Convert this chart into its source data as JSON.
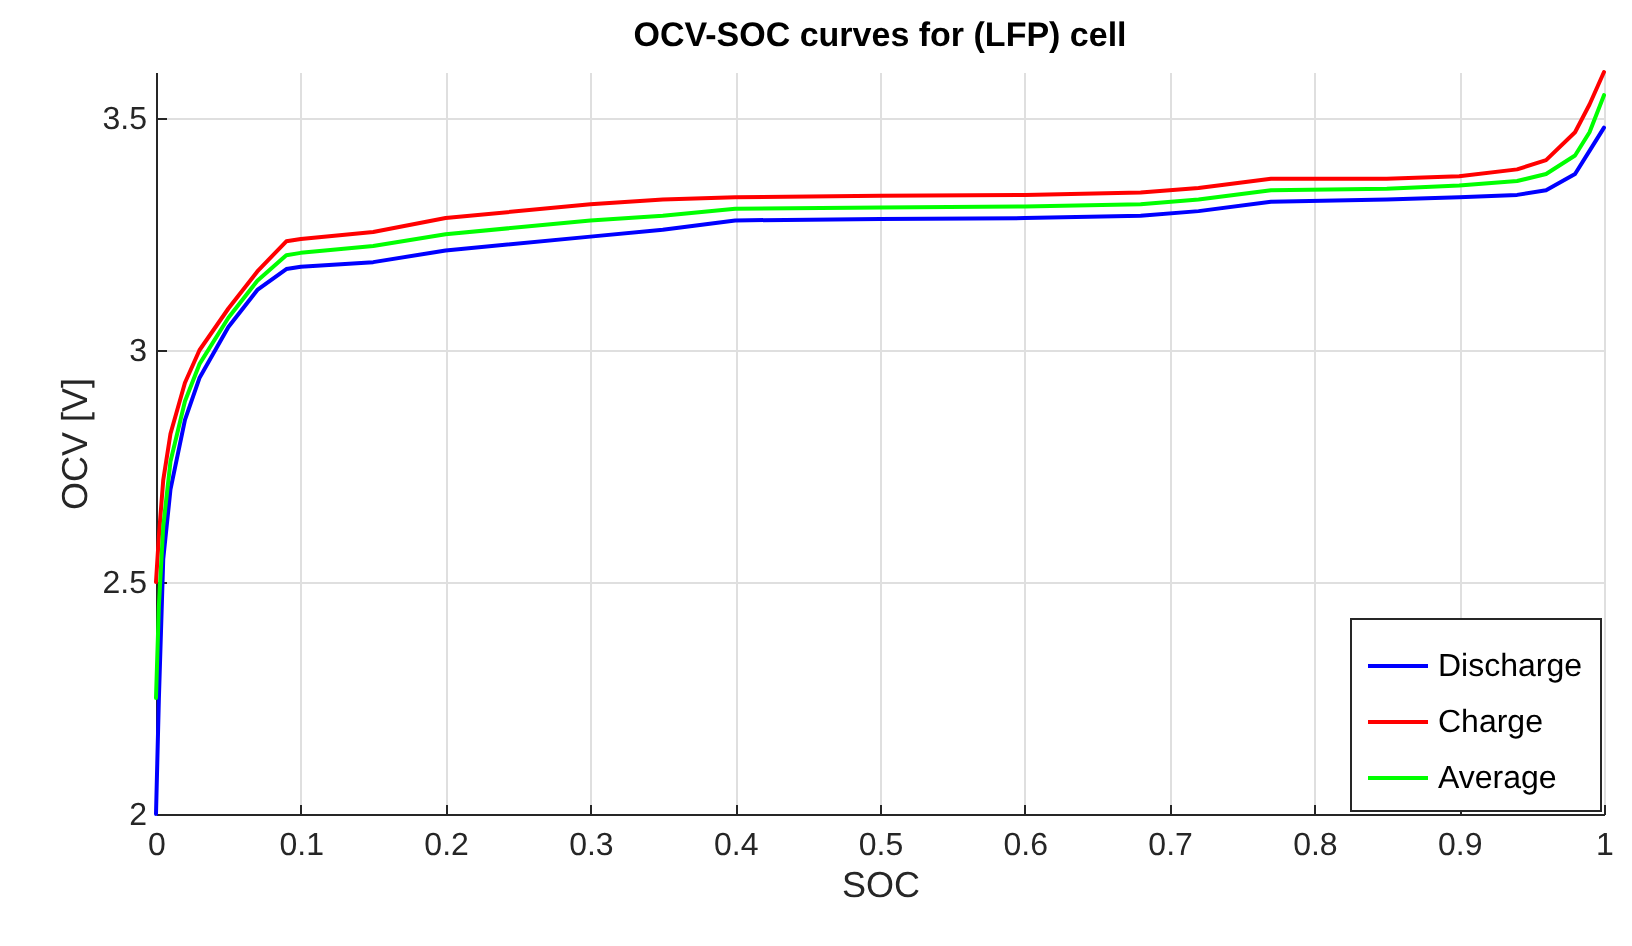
{
  "chart_data": {
    "type": "line",
    "title": "OCV-SOC curves for (LFP) cell",
    "xlabel": "SOC",
    "ylabel": "OCV [V]",
    "x": [
      0,
      0.002,
      0.005,
      0.01,
      0.02,
      0.03,
      0.05,
      0.07,
      0.09,
      0.1,
      0.15,
      0.2,
      0.3,
      0.35,
      0.4,
      0.5,
      0.6,
      0.68,
      0.72,
      0.77,
      0.85,
      0.9,
      0.94,
      0.96,
      0.98,
      0.99,
      1.0
    ],
    "series": [
      {
        "name": "Discharge",
        "color": "#0000ff",
        "values": [
          2.0,
          2.25,
          2.55,
          2.7,
          2.85,
          2.94,
          3.05,
          3.13,
          3.175,
          3.18,
          3.19,
          3.215,
          3.245,
          3.26,
          3.28,
          3.283,
          3.285,
          3.29,
          3.3,
          3.32,
          3.325,
          3.33,
          3.335,
          3.345,
          3.38,
          3.43,
          3.48
        ]
      },
      {
        "name": "Charge",
        "color": "#ff0000",
        "values": [
          2.5,
          2.6,
          2.72,
          2.82,
          2.93,
          3.0,
          3.09,
          3.17,
          3.235,
          3.24,
          3.255,
          3.285,
          3.315,
          3.325,
          3.33,
          3.333,
          3.335,
          3.34,
          3.35,
          3.37,
          3.37,
          3.375,
          3.39,
          3.41,
          3.47,
          3.53,
          3.6
        ]
      },
      {
        "name": "Average",
        "color": "#00ff00",
        "values": [
          2.25,
          2.45,
          2.62,
          2.76,
          2.89,
          2.97,
          3.07,
          3.15,
          3.205,
          3.21,
          3.225,
          3.25,
          3.28,
          3.29,
          3.305,
          3.308,
          3.31,
          3.315,
          3.325,
          3.345,
          3.348,
          3.355,
          3.365,
          3.38,
          3.42,
          3.47,
          3.55
        ]
      }
    ],
    "xlim": [
      0,
      1
    ],
    "xticks": [
      0,
      0.1,
      0.2,
      0.3,
      0.4,
      0.5,
      0.6,
      0.7,
      0.8,
      0.9,
      1
    ],
    "ylim": [
      2,
      3.6
    ],
    "yticks": [
      2,
      2.5,
      3,
      3.5
    ],
    "grid": true,
    "legend": "bottom right",
    "line_style": "solid",
    "marker": "none"
  }
}
